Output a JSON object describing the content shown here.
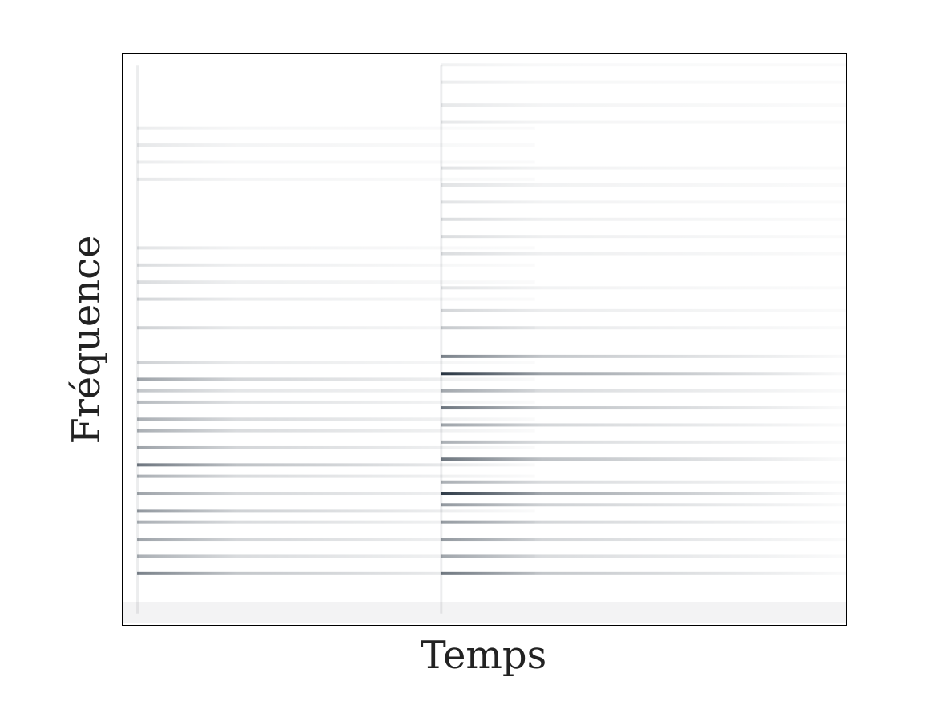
{
  "chart_data": {
    "type": "heatmap",
    "title": "",
    "xlabel": "Temps",
    "ylabel": "Fréquence",
    "colormap": [
      "#ffffff",
      "#0d1b2a"
    ],
    "axes_ticks": "none",
    "onsets": [
      0.02,
      0.44
    ],
    "notes": [
      {
        "onset": 0.02,
        "decay": 0.55,
        "partials": [
          {
            "f": 0.09,
            "a": 0.55
          },
          {
            "f": 0.12,
            "a": 0.35
          },
          {
            "f": 0.15,
            "a": 0.4
          },
          {
            "f": 0.18,
            "a": 0.35
          },
          {
            "f": 0.2,
            "a": 0.45
          },
          {
            "f": 0.23,
            "a": 0.4
          },
          {
            "f": 0.26,
            "a": 0.35
          },
          {
            "f": 0.28,
            "a": 0.6
          },
          {
            "f": 0.31,
            "a": 0.4
          },
          {
            "f": 0.34,
            "a": 0.35
          },
          {
            "f": 0.36,
            "a": 0.35
          },
          {
            "f": 0.39,
            "a": 0.3
          },
          {
            "f": 0.41,
            "a": 0.25
          },
          {
            "f": 0.43,
            "a": 0.4
          },
          {
            "f": 0.46,
            "a": 0.2
          },
          {
            "f": 0.52,
            "a": 0.2
          },
          {
            "f": 0.57,
            "a": 0.18
          },
          {
            "f": 0.6,
            "a": 0.15
          },
          {
            "f": 0.63,
            "a": 0.15
          },
          {
            "f": 0.66,
            "a": 0.12
          },
          {
            "f": 0.78,
            "a": 0.1
          },
          {
            "f": 0.81,
            "a": 0.08
          },
          {
            "f": 0.84,
            "a": 0.1
          },
          {
            "f": 0.87,
            "a": 0.08
          }
        ]
      },
      {
        "onset": 0.44,
        "decay": 0.9,
        "partials": [
          {
            "f": 0.09,
            "a": 0.55
          },
          {
            "f": 0.12,
            "a": 0.35
          },
          {
            "f": 0.15,
            "a": 0.4
          },
          {
            "f": 0.18,
            "a": 0.4
          },
          {
            "f": 0.21,
            "a": 0.45
          },
          {
            "f": 0.23,
            "a": 0.85
          },
          {
            "f": 0.25,
            "a": 0.35
          },
          {
            "f": 0.29,
            "a": 0.6
          },
          {
            "f": 0.32,
            "a": 0.35
          },
          {
            "f": 0.35,
            "a": 0.4
          },
          {
            "f": 0.38,
            "a": 0.6
          },
          {
            "f": 0.41,
            "a": 0.35
          },
          {
            "f": 0.44,
            "a": 0.9
          },
          {
            "f": 0.47,
            "a": 0.55
          },
          {
            "f": 0.52,
            "a": 0.2
          },
          {
            "f": 0.55,
            "a": 0.18
          },
          {
            "f": 0.59,
            "a": 0.12
          },
          {
            "f": 0.65,
            "a": 0.15
          },
          {
            "f": 0.68,
            "a": 0.15
          },
          {
            "f": 0.71,
            "a": 0.15
          },
          {
            "f": 0.74,
            "a": 0.12
          },
          {
            "f": 0.77,
            "a": 0.12
          },
          {
            "f": 0.8,
            "a": 0.12
          },
          {
            "f": 0.88,
            "a": 0.1
          },
          {
            "f": 0.91,
            "a": 0.1
          },
          {
            "f": 0.95,
            "a": 0.08
          },
          {
            "f": 0.98,
            "a": 0.06
          }
        ]
      }
    ]
  }
}
